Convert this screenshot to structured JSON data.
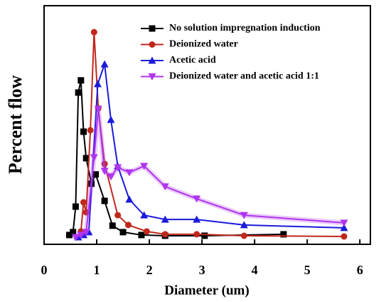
{
  "chart_data": {
    "type": "line",
    "xlabel": "Diameter (um)",
    "ylabel": "Percent flow",
    "xlim": [
      0,
      6.2
    ],
    "xticks": [
      0,
      1,
      2,
      3,
      4,
      5,
      6
    ],
    "ylim": [
      0,
      100
    ],
    "legend": "upper right",
    "series": [
      {
        "name": "No solution impregnation induction",
        "color": "#000000",
        "marker": "square",
        "x": [
          0.48,
          0.55,
          0.6,
          0.65,
          0.7,
          0.75,
          0.8,
          0.9,
          0.98,
          1.15,
          1.3,
          1.5,
          1.85,
          2.3,
          3.05,
          4.55
        ],
        "values": [
          3.9,
          5.1,
          15.8,
          63.6,
          68.7,
          47.2,
          36.1,
          25.4,
          29.3,
          18.2,
          7.8,
          5.1,
          3.9,
          3.6,
          3.6,
          4.2
        ]
      },
      {
        "name": "Deionized water",
        "color": "#c0281c",
        "marker": "circle",
        "x": [
          0.62,
          0.7,
          0.75,
          0.8,
          0.88,
          0.95,
          1.03,
          1.15,
          1.4,
          1.6,
          1.95,
          2.3,
          2.9,
          3.8,
          5.7
        ],
        "values": [
          3.0,
          5.4,
          17.6,
          13.4,
          47.8,
          88.9,
          57.0,
          33.7,
          12.2,
          8.1,
          5.4,
          4.2,
          4.2,
          3.6,
          3.3
        ]
      },
      {
        "name": "Acetic acid",
        "color": "#1a1adc",
        "marker": "triangle-up",
        "x": [
          0.65,
          0.75,
          0.85,
          1.02,
          1.15,
          1.27,
          1.4,
          1.62,
          1.9,
          2.3,
          2.9,
          3.8,
          5.7
        ],
        "values": [
          3.0,
          3.9,
          5.1,
          67.2,
          75.5,
          52.2,
          32.8,
          18.8,
          12.2,
          10.4,
          10.4,
          8.1,
          6.9
        ]
      },
      {
        "name": "Deionized water and acetic acid 1:1",
        "color": "#b035f0",
        "marker": "triangle-down",
        "x": [
          0.6,
          0.7,
          0.8,
          0.95,
          1.03,
          1.15,
          1.27,
          1.4,
          1.62,
          1.9,
          2.3,
          2.9,
          3.8,
          5.7
        ],
        "values": [
          3.0,
          3.9,
          5.1,
          36.4,
          56.7,
          30.7,
          28.4,
          32.2,
          30.1,
          32.8,
          24.2,
          19.1,
          12.2,
          9.0
        ]
      }
    ]
  }
}
